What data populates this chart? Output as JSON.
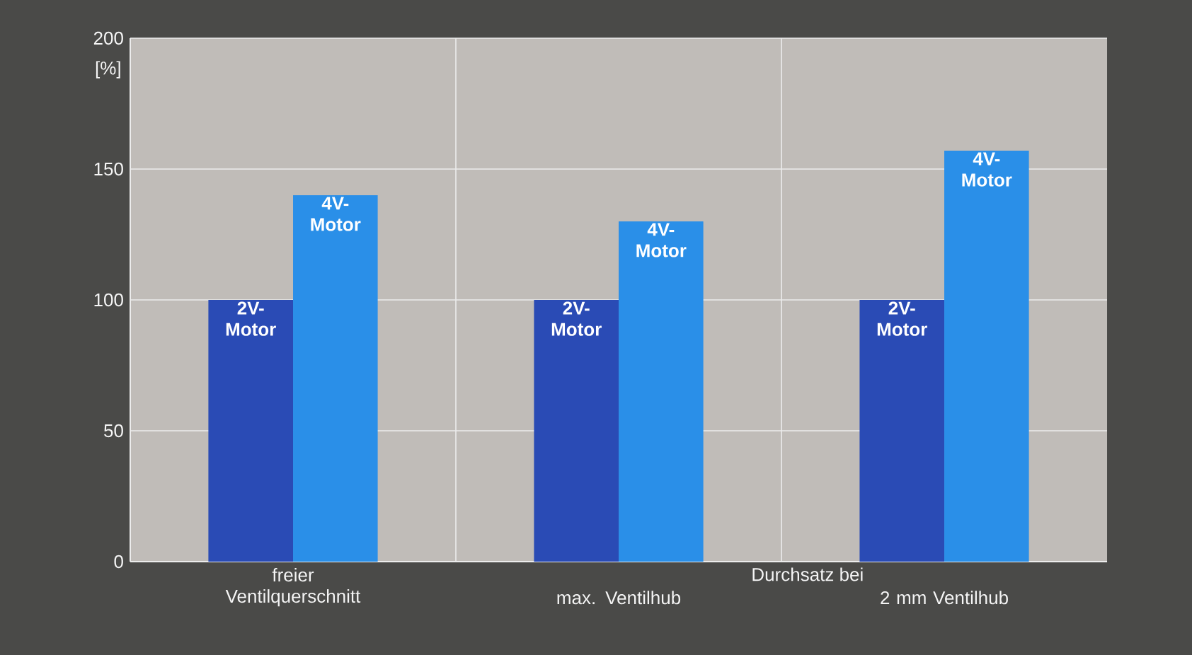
{
  "chart_data": {
    "type": "bar",
    "ylabel": "[%]",
    "categories": [
      "freier Ventilquerschnitt",
      "max. Ventilhub",
      "2 mm Ventilhub"
    ],
    "series": [
      {
        "name": "2V-Motor",
        "color": "#2a4bb5",
        "values": [
          100,
          100,
          100
        ]
      },
      {
        "name": "4V-Motor",
        "color": "#2a8fe8",
        "values": [
          140,
          130,
          157
        ]
      }
    ],
    "ylim": [
      0,
      200
    ],
    "yticks": [
      0,
      50,
      100,
      150,
      200
    ],
    "grid": true,
    "legend": false,
    "annotations": [
      "Durchsatz bei"
    ]
  }
}
